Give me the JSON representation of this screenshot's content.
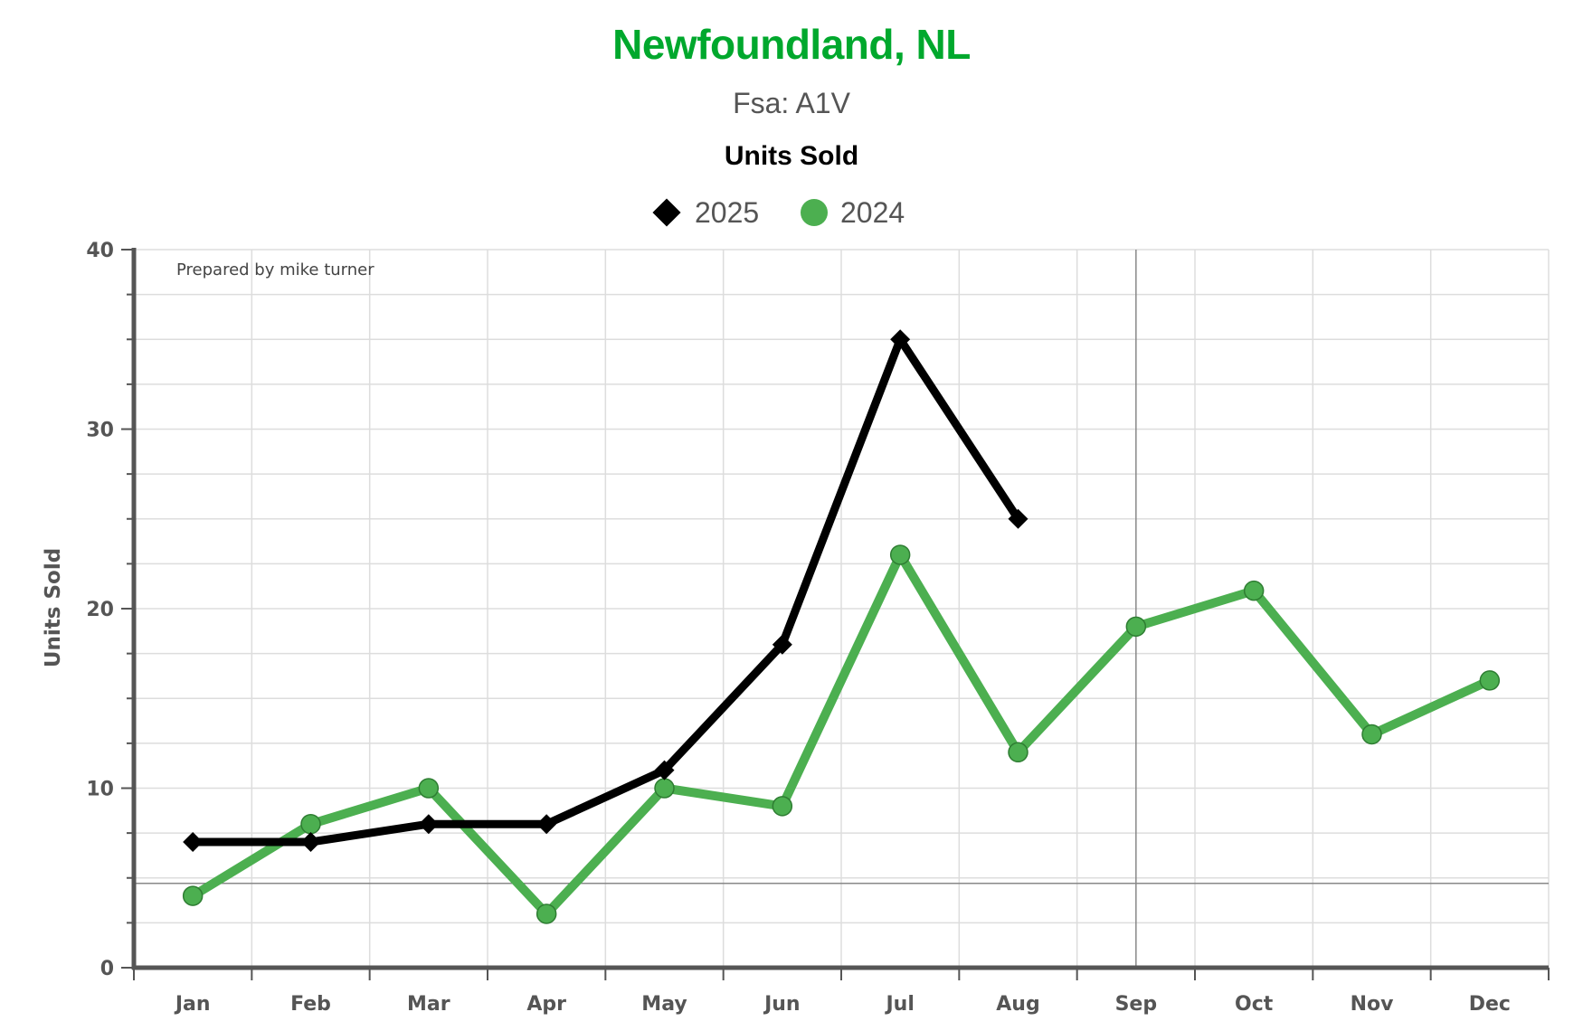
{
  "header": {
    "title": "Newfoundland, NL",
    "subtitle": "Fsa: A1V",
    "heading": "Units Sold"
  },
  "legend": {
    "items": [
      {
        "label": "2025",
        "icon": "diamond-icon"
      },
      {
        "label": "2024",
        "icon": "circle-icon"
      }
    ]
  },
  "annotation": "Prepared by mike turner",
  "colors": {
    "title": "#00a82d",
    "series_2025": "#000000",
    "series_2024": "#4caf50",
    "marker_2024_border": "#2e7d32",
    "grid": "#dddddd",
    "axis": "#555555"
  },
  "chart_data": {
    "type": "line",
    "title": "Newfoundland, NL",
    "subtitle": "Fsa: A1V",
    "xlabel": "",
    "ylabel": "Units Sold",
    "categories": [
      "Jan",
      "Feb",
      "Mar",
      "Apr",
      "May",
      "Jun",
      "Jul",
      "Aug",
      "Sep",
      "Oct",
      "Nov",
      "Dec"
    ],
    "ylim": [
      0,
      40
    ],
    "yticks": [
      0,
      10,
      20,
      30,
      40
    ],
    "grid": true,
    "legend_position": "top-center",
    "series": [
      {
        "name": "2025",
        "marker": "diamond",
        "color": "#000000",
        "values": [
          7,
          7,
          8,
          8,
          11,
          18,
          35,
          25,
          null,
          null,
          null,
          null
        ]
      },
      {
        "name": "2024",
        "marker": "circle",
        "color": "#4caf50",
        "values": [
          4,
          8,
          10,
          3,
          10,
          9,
          23,
          12,
          19,
          21,
          13,
          16
        ]
      }
    ],
    "reference_lines": {
      "x_category": "Sep",
      "y_value": 4.7
    }
  }
}
